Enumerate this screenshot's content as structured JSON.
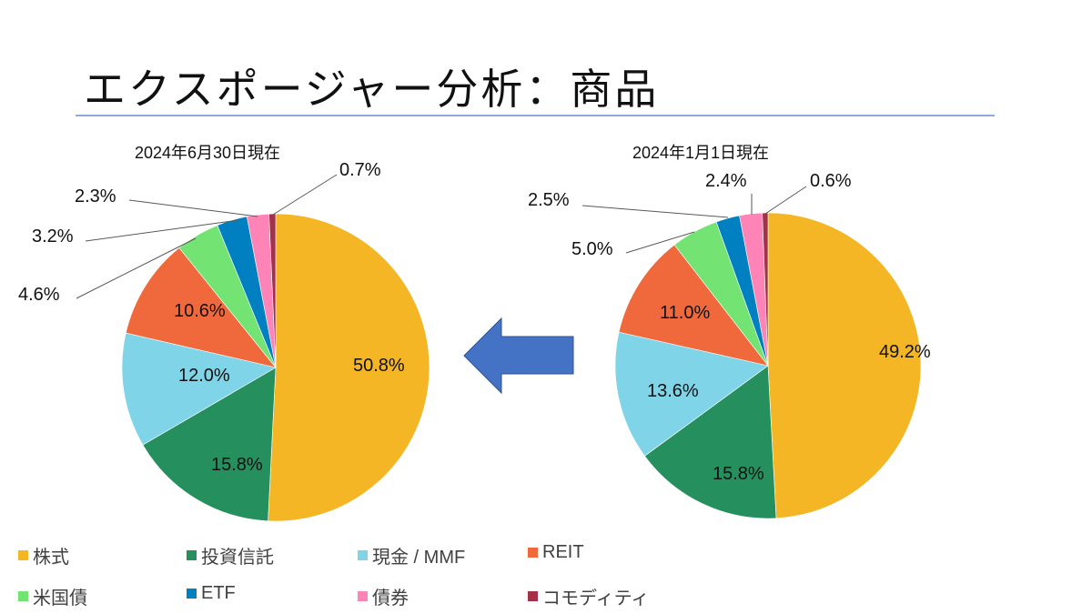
{
  "header": {
    "title": "エクスポージャー分析：商品"
  },
  "chart_data": [
    {
      "type": "pie",
      "title": "2024年6月30日現在",
      "categories": [
        "株式",
        "投資信託",
        "現金 / MMF",
        "REIT",
        "米国債",
        "ETF",
        "債券",
        "コモディティ"
      ],
      "values": [
        50.8,
        15.8,
        12.0,
        10.6,
        4.6,
        3.2,
        2.3,
        0.7
      ],
      "labels": [
        "50.8%",
        "15.8%",
        "12.0%",
        "10.6%",
        "4.6%",
        "3.2%",
        "2.3%",
        "0.7%"
      ],
      "unit": "%"
    },
    {
      "type": "pie",
      "title": "2024年1月1日現在",
      "categories": [
        "株式",
        "投資信託",
        "現金 / MMF",
        "REIT",
        "米国債",
        "ETF",
        "債券",
        "コモディティ"
      ],
      "values": [
        49.2,
        15.8,
        13.6,
        11.0,
        5.0,
        2.5,
        2.4,
        0.6
      ],
      "labels": [
        "49.2%",
        "15.8%",
        "13.6%",
        "11.0%",
        "5.0%",
        "2.5%",
        "2.4%",
        "0.6%"
      ],
      "unit": "%"
    }
  ],
  "colors": [
    "#f4b624",
    "#25905e",
    "#80d4e8",
    "#f0693d",
    "#73e374",
    "#0080c0",
    "#fe83b6",
    "#a23149"
  ],
  "arrow": {
    "direction": "left",
    "color": "#4472c4"
  },
  "legend": {
    "position": "bottom",
    "items": [
      {
        "label": "株式"
      },
      {
        "label": "投資信託"
      },
      {
        "label": "現金 / MMF"
      },
      {
        "label": "REIT"
      },
      {
        "label": "米国債"
      },
      {
        "label": "ETF"
      },
      {
        "label": "債券"
      },
      {
        "label": "コモディティ"
      }
    ]
  }
}
